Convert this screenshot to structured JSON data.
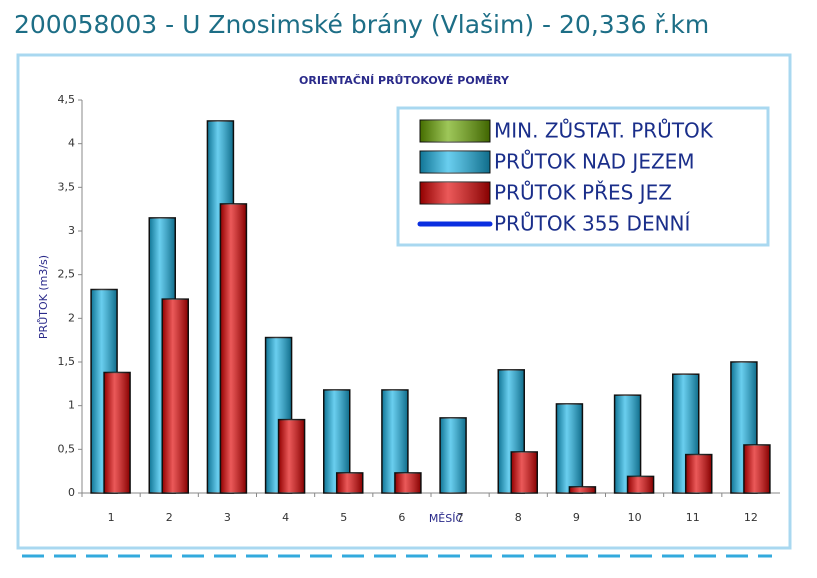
{
  "page_title": "200058003 - U Znosimské brány (Vlašim) - 20,336 ř.km",
  "chart_data": {
    "type": "bar",
    "title": "ORIENTAČNÍ PRŮTOKOVÉ POMĚRY",
    "x_label": "MĚSÍC",
    "y_label": "PRŮTOK (m3/s)",
    "categories": [
      "1",
      "2",
      "3",
      "4",
      "5",
      "6",
      "7",
      "8",
      "9",
      "10",
      "11",
      "12"
    ],
    "series": [
      {
        "name": "MIN. ZŮSTAT. PRŮTOK",
        "color": "#6aa800",
        "values": [
          null,
          null,
          null,
          null,
          null,
          null,
          null,
          null,
          null,
          null,
          null,
          null
        ]
      },
      {
        "name": "PRŮTOK NAD JEZEM",
        "color": "#19b4e6",
        "values": [
          2.33,
          3.15,
          4.26,
          1.78,
          1.18,
          1.18,
          0.86,
          1.41,
          1.02,
          1.12,
          1.36,
          1.5
        ]
      },
      {
        "name": "PRŮTOK PŘES JEZ",
        "color": "#e00000",
        "values": [
          1.38,
          2.22,
          3.31,
          0.84,
          0.23,
          0.23,
          null,
          0.47,
          0.07,
          0.19,
          0.44,
          0.55
        ]
      },
      {
        "name": "PRŮTOK 355 DENNÍ",
        "color": "#0a2ee0",
        "type": "line",
        "values": [
          null,
          null,
          null,
          null,
          null,
          null,
          null,
          null,
          null,
          null,
          null,
          null
        ]
      }
    ],
    "ylim": [
      0,
      4.5
    ],
    "yticks": [
      0,
      {
        "value": 0.5,
        "label": "0,5"
      },
      1,
      {
        "value": 1.5,
        "label": "1,5"
      },
      2,
      {
        "value": 2.5,
        "label": "2,5"
      },
      3,
      {
        "value": 3.5,
        "label": "3,5"
      },
      4,
      {
        "value": 4.5,
        "label": "4,5"
      }
    ],
    "legend": "top-right"
  }
}
